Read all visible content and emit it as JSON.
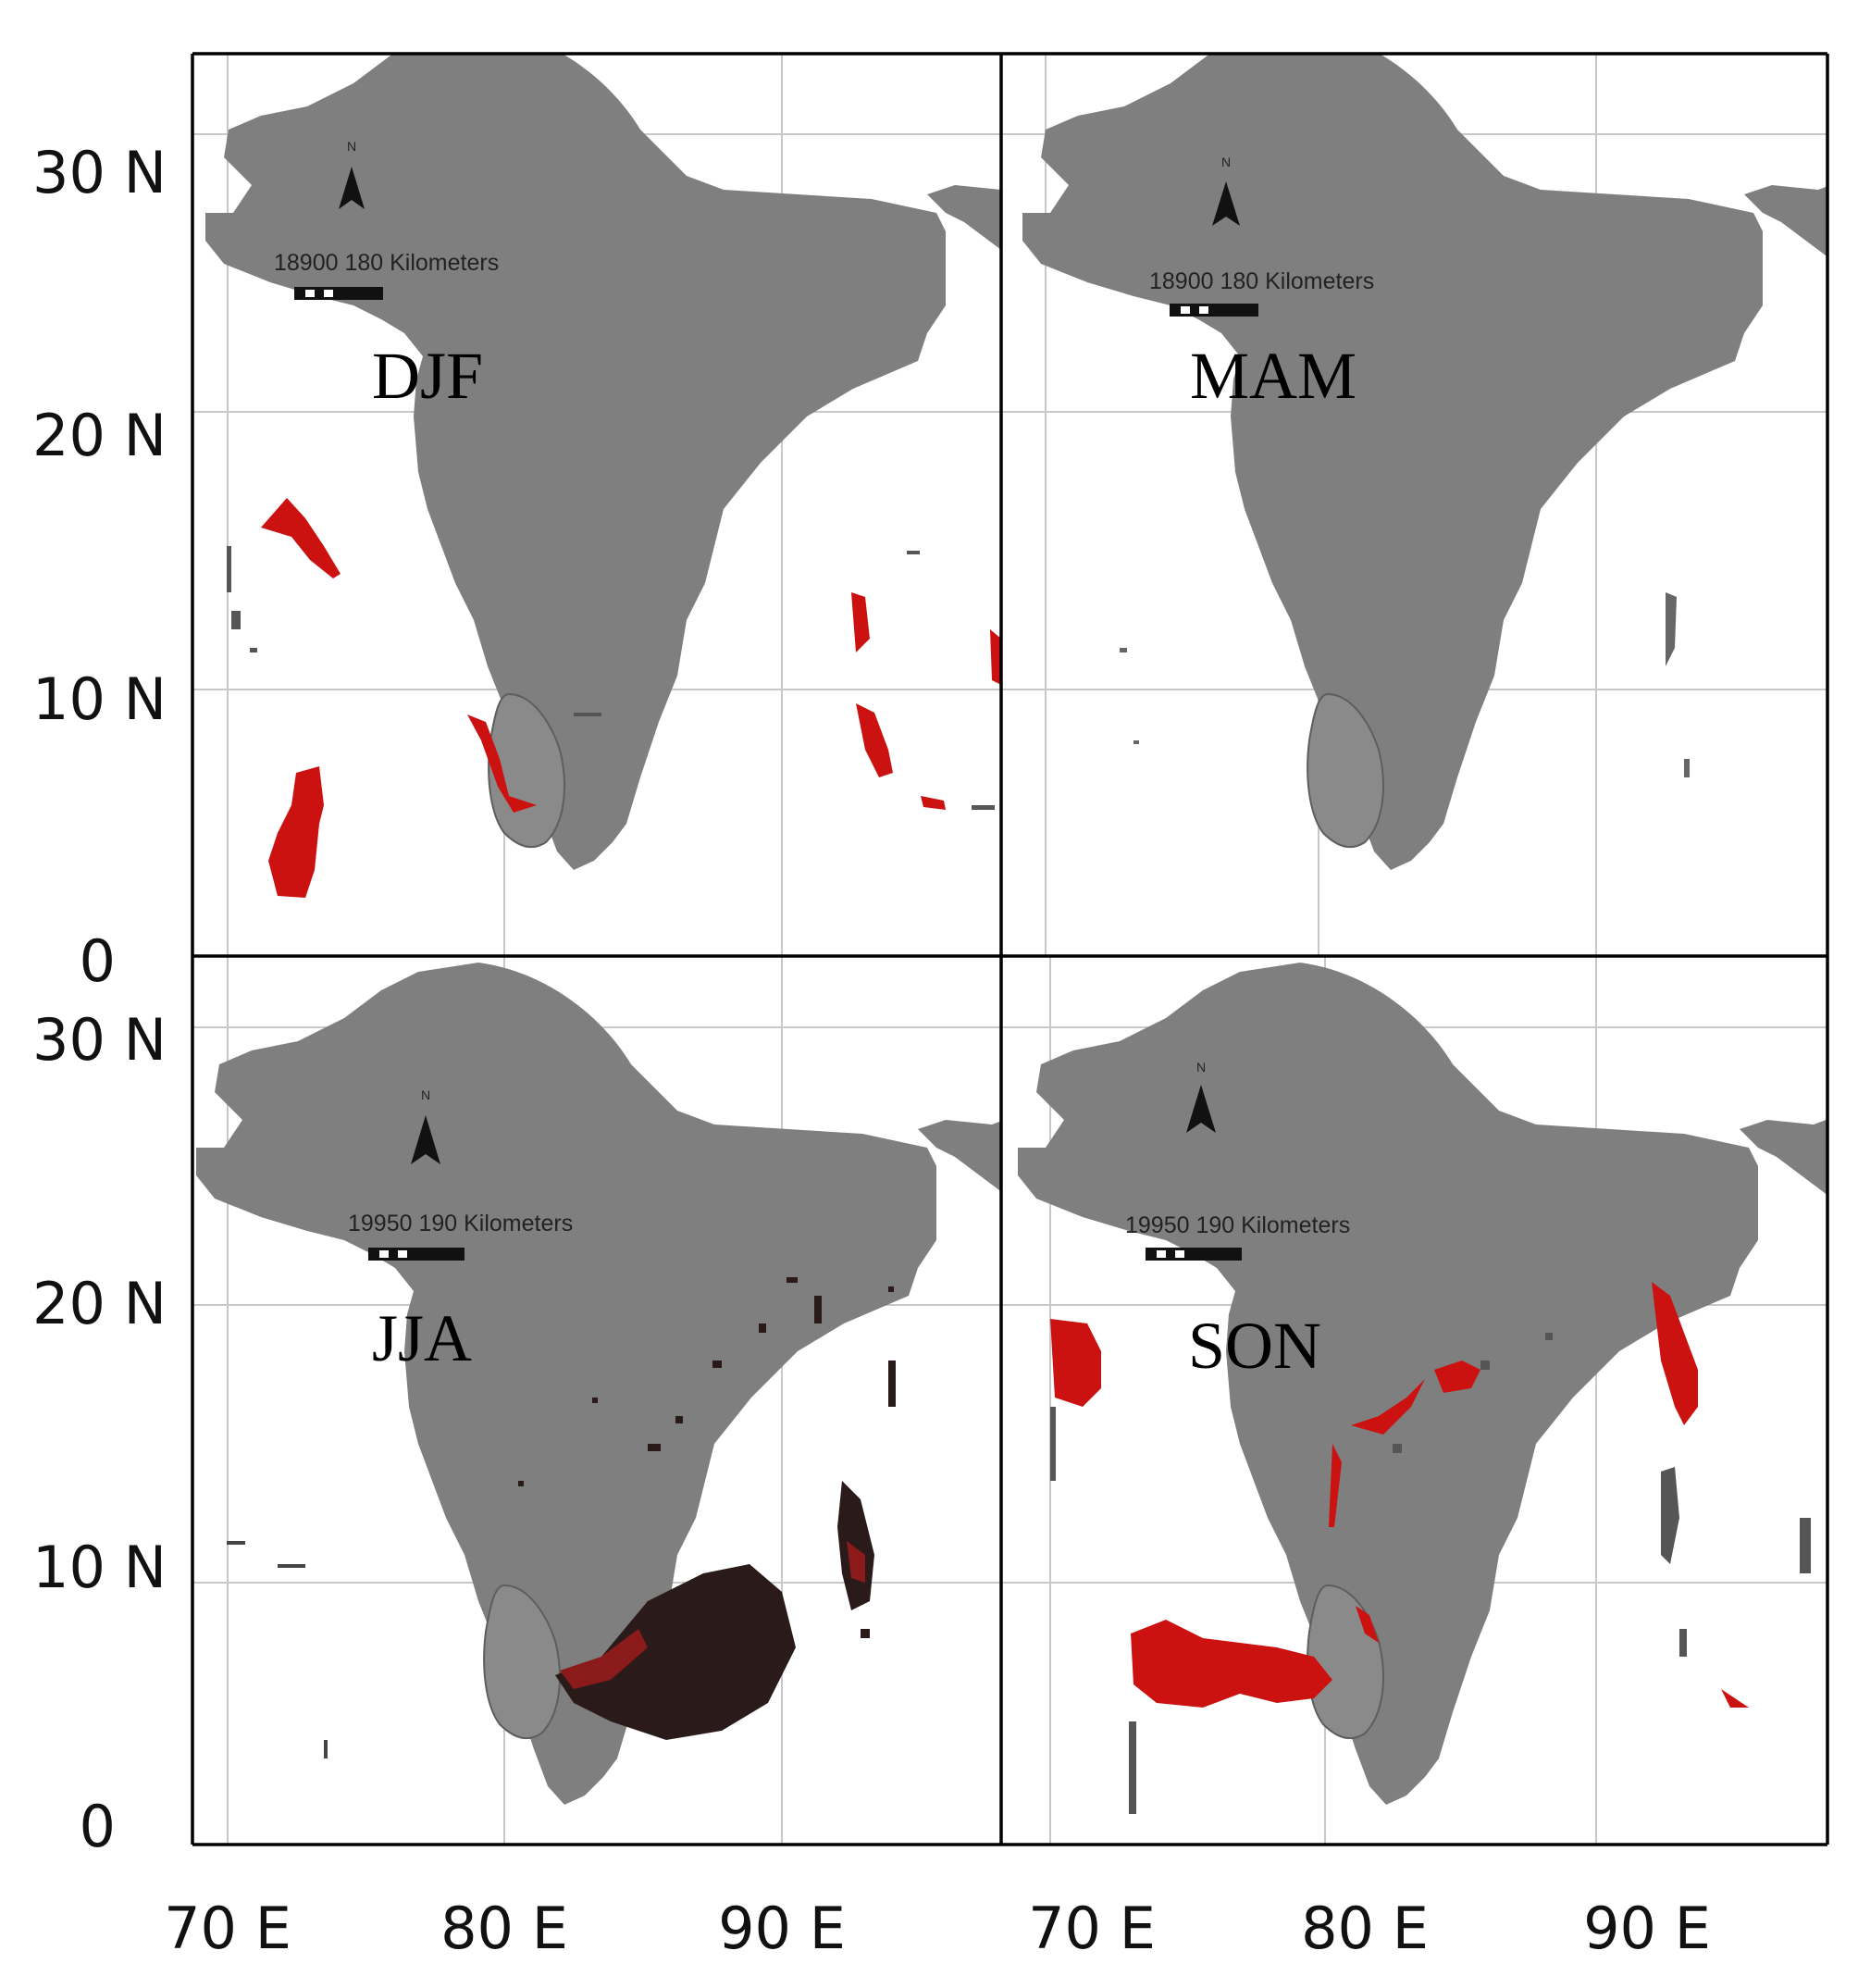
{
  "figure": {
    "y_axis_ticks": [
      "30 N",
      "20 N",
      "10 N",
      "0"
    ],
    "x_axis_ticks": [
      "70 E",
      "80 E",
      "90 E"
    ],
    "colors": {
      "land": "#7f7f7f",
      "ocean": "#ffffff",
      "grid": "#c8c8c8",
      "frame": "#000000",
      "highlight": "#cc1111",
      "dark_cluster": "#2a1a1a"
    },
    "panels": [
      {
        "id": "djf",
        "season": "DJF",
        "north_arrow": "N",
        "scale_text": "18900   180 Kilometers"
      },
      {
        "id": "mam",
        "season": "MAM",
        "north_arrow": "N",
        "scale_text": "18900   180 Kilometers"
      },
      {
        "id": "jja",
        "season": "JJA",
        "north_arrow": "N",
        "scale_text": "19950   190 Kilometers"
      },
      {
        "id": "son",
        "season": "SON",
        "north_arrow": "N",
        "scale_text": "19950   190 Kilometers"
      }
    ]
  }
}
